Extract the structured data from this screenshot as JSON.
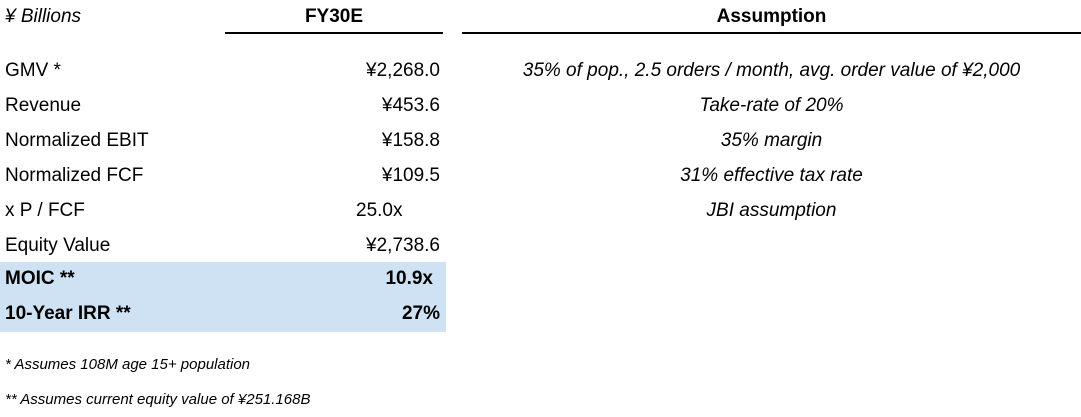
{
  "header": {
    "units": "¥ Billions",
    "fy_column": "FY30E",
    "assumption_column": "Assumption"
  },
  "rows": [
    {
      "label": "GMV *",
      "value": "¥2,268.0",
      "assumption": "35% of pop., 2.5 orders / month, avg. order value of ¥2,000"
    },
    {
      "label": "Revenue",
      "value": "¥453.6",
      "assumption": "Take-rate of 20%"
    },
    {
      "label": "Normalized EBIT",
      "value": "¥158.8",
      "assumption": "35% margin"
    },
    {
      "label": "Normalized FCF",
      "value": "¥109.5",
      "assumption": "31% effective tax rate"
    },
    {
      "label": "x P / FCF",
      "value": "25.0x",
      "assumption": "JBI assumption"
    },
    {
      "label": "Equity Value",
      "value": "¥2,738.6",
      "assumption": ""
    },
    {
      "label": "MOIC **",
      "value": "10.9x",
      "assumption": ""
    },
    {
      "label": "10-Year IRR **",
      "value": "27%",
      "assumption": ""
    }
  ],
  "footnotes": [
    "*   Assumes 108M age 15+ population",
    "** Assumes current equity value of ¥251.168B"
  ],
  "colors": {
    "highlight": "#cfe2f3"
  }
}
